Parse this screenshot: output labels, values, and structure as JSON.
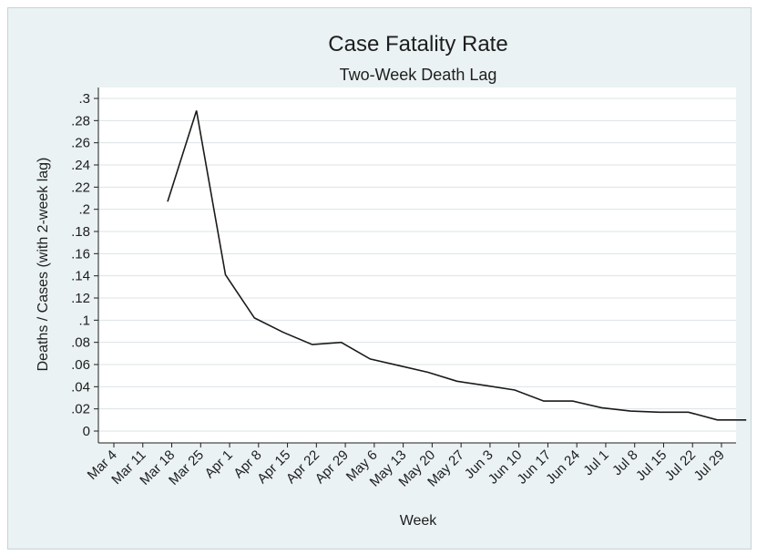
{
  "chart_data": {
    "type": "line",
    "title": "Case Fatality Rate",
    "subtitle": "Two-Week Death Lag",
    "xlabel": "Week",
    "ylabel": "Deaths / Cases (with 2-week lag)",
    "ylim": [
      0,
      0.3
    ],
    "yticks": [
      0,
      0.02,
      0.04,
      0.06,
      0.08,
      0.1,
      0.12,
      0.14,
      0.16,
      0.18,
      0.2,
      0.22,
      0.24,
      0.26,
      0.28,
      0.3
    ],
    "ytick_labels": [
      "0",
      ".02",
      ".04",
      ".06",
      ".08",
      ".1",
      ".12",
      ".14",
      ".16",
      ".18",
      ".2",
      ".22",
      ".24",
      ".26",
      ".28",
      ".3"
    ],
    "categories": [
      "Mar 4",
      "Mar 11",
      "Mar 18",
      "Mar 25",
      "Apr 1",
      "Apr 8",
      "Apr 15",
      "Apr 22",
      "Apr 29",
      "May 6",
      "May 13",
      "May 20",
      "May 27",
      "Jun 3",
      "Jun 10",
      "Jun 17",
      "Jun 24",
      "Jul 1",
      "Jul 8",
      "Jul 15",
      "Jul 22",
      "Jul 29"
    ],
    "grid": true,
    "series": [
      {
        "name": "Case Fatality Rate",
        "x": [
          13,
          20,
          27,
          34,
          41,
          48,
          55,
          62,
          69,
          76,
          83,
          90,
          97,
          104,
          111,
          118,
          125,
          132,
          139,
          146,
          153
        ],
        "values": [
          0.207,
          0.289,
          0.141,
          0.102,
          0.089,
          0.078,
          0.08,
          0.065,
          0.059,
          0.053,
          0.045,
          0.041,
          0.037,
          0.027,
          0.027,
          0.021,
          0.018,
          0.017,
          0.017,
          0.01,
          0.01
        ]
      }
    ],
    "x_day_offsets": [
      0,
      7,
      14,
      21,
      28,
      35,
      42,
      49,
      56,
      63,
      70,
      77,
      84,
      91,
      98,
      105,
      112,
      119,
      126,
      133,
      140,
      147
    ]
  },
  "colors": {
    "background": "#eaf2f3",
    "plot_area": "#ffffff",
    "line": "#1a1a1a",
    "grid": "#dbe3e6"
  }
}
